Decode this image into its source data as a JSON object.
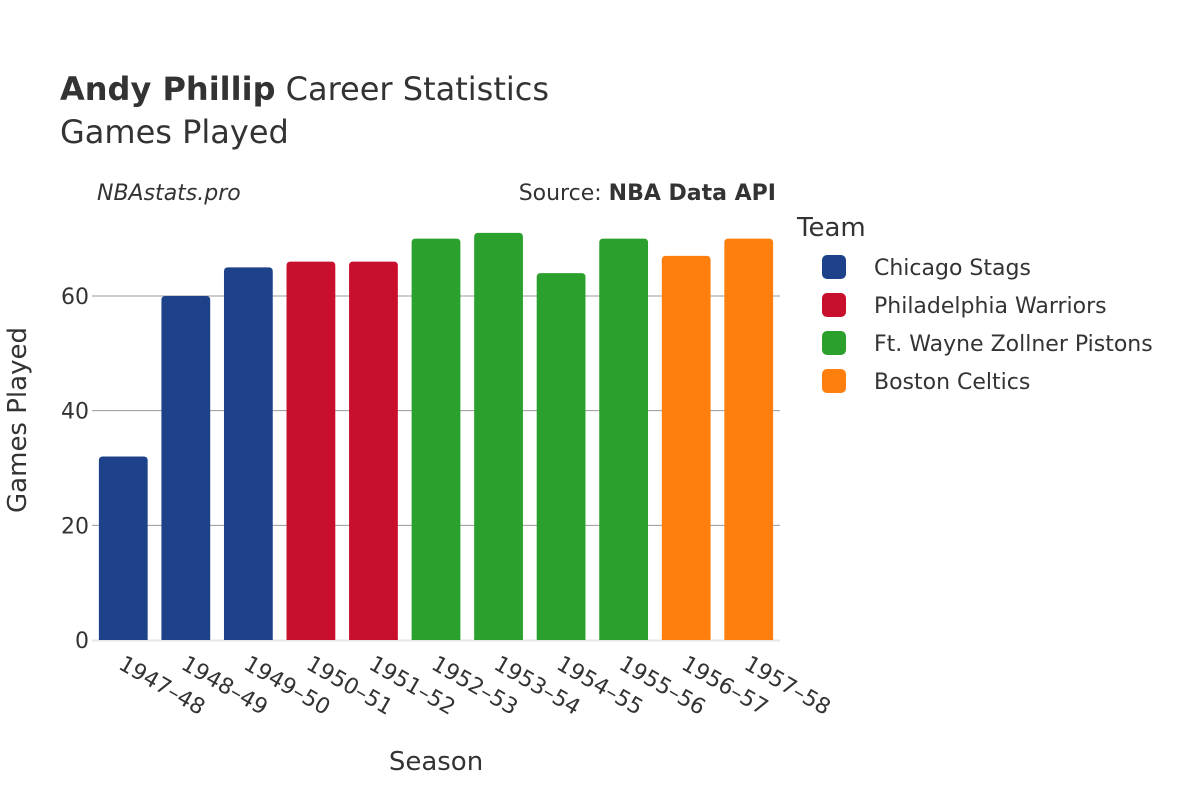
{
  "header": {
    "player_name": "Andy Phillip",
    "title_rest": " Career Statistics",
    "subtitle": "Games Played",
    "watermark": "NBAstats.pro",
    "source_prefix": "Source: ",
    "source_name": "NBA Data API"
  },
  "chart_data": {
    "type": "bar",
    "title": "Andy Phillip Career Statistics",
    "subtitle": "Games Played",
    "xlabel": "Season",
    "ylabel": "Games Played",
    "ylim": [
      0,
      75
    ],
    "yticks": [
      0,
      20,
      40,
      60
    ],
    "grid": true,
    "legend_title": "Team",
    "legend_position": "right",
    "categories": [
      "1947–48",
      "1948–49",
      "1949–50",
      "1950–51",
      "1951–52",
      "1952–53",
      "1953–54",
      "1954–55",
      "1955–56",
      "1956–57",
      "1957–58"
    ],
    "values": [
      32,
      60,
      65,
      66,
      66,
      70,
      71,
      64,
      70,
      67,
      70
    ],
    "teams": [
      "Chicago Stags",
      "Chicago Stags",
      "Chicago Stags",
      "Philadelphia Warriors",
      "Philadelphia Warriors",
      "Ft. Wayne Zollner Pistons",
      "Ft. Wayne Zollner Pistons",
      "Ft. Wayne Zollner Pistons",
      "Ft. Wayne Zollner Pistons",
      "Boston Celtics",
      "Boston Celtics"
    ],
    "legend": [
      {
        "name": "Chicago Stags",
        "color": "#1d428a"
      },
      {
        "name": "Philadelphia Warriors",
        "color": "#c8102e"
      },
      {
        "name": "Ft. Wayne Zollner Pistons",
        "color": "#2ca02c"
      },
      {
        "name": "Boston Celtics",
        "color": "#ff7f0e"
      }
    ]
  }
}
